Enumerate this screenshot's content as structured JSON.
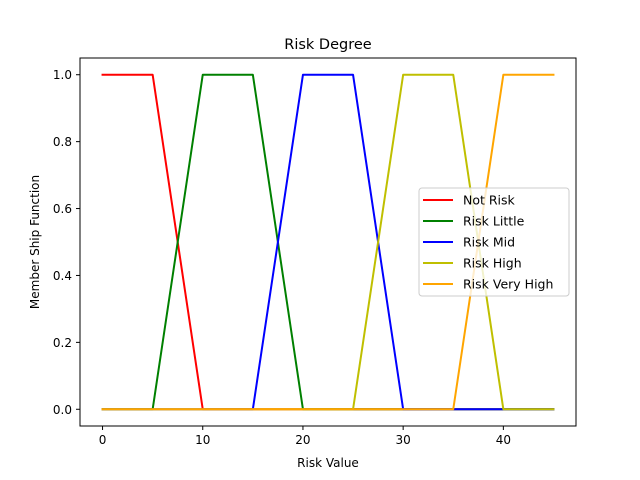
{
  "chart_data": {
    "type": "line",
    "title": "Risk Degree",
    "xlabel": "Risk Value",
    "ylabel": "Member Ship Function",
    "xlim": [
      -2.25,
      47.25
    ],
    "ylim": [
      -0.05,
      1.05
    ],
    "xticks": [
      0,
      10,
      20,
      30,
      40
    ],
    "yticks": [
      0.0,
      0.2,
      0.4,
      0.6,
      0.8,
      1.0
    ],
    "grid": false,
    "legend_position": "center-right",
    "series": [
      {
        "name": "Not Risk",
        "color": "#ff0000",
        "x": [
          0,
          5,
          10,
          45
        ],
        "y": [
          1,
          1,
          0,
          0
        ]
      },
      {
        "name": "Risk Little",
        "color": "#008000",
        "x": [
          0,
          5,
          10,
          15,
          20,
          45
        ],
        "y": [
          0,
          0,
          1,
          1,
          0,
          0
        ]
      },
      {
        "name": "Risk Mid",
        "color": "#0000ff",
        "x": [
          0,
          15,
          20,
          25,
          30,
          45
        ],
        "y": [
          0,
          0,
          1,
          1,
          0,
          0
        ]
      },
      {
        "name": "Risk High",
        "color": "#bfbf00",
        "x": [
          0,
          25,
          30,
          35,
          40,
          45
        ],
        "y": [
          0,
          0,
          1,
          1,
          0,
          0
        ]
      },
      {
        "name": "Risk Very High",
        "color": "#ffa500",
        "x": [
          0,
          35,
          40,
          45
        ],
        "y": [
          0,
          0,
          1,
          1
        ]
      }
    ]
  }
}
